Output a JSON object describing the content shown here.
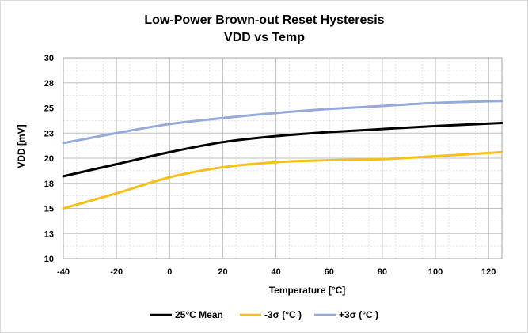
{
  "chart_data": {
    "type": "line",
    "title": "Low-Power Brown-out Reset Hysteresis",
    "subtitle": "VDD vs Temp",
    "xlabel": "Temperature [°C]",
    "ylabel": "VDD [mV]",
    "xlim": [
      -40,
      125
    ],
    "ylim": [
      10,
      30
    ],
    "x_ticks": [
      -40,
      -20,
      0,
      20,
      40,
      60,
      80,
      100,
      120
    ],
    "y_ticks": [
      10,
      13,
      15,
      18,
      20,
      23,
      25,
      28,
      30
    ],
    "y_tick_values": [
      10,
      12.5,
      15,
      17.5,
      20,
      22.5,
      25,
      27.5,
      30
    ],
    "grid": true,
    "legend_position": "bottom",
    "x": [
      -40,
      -20,
      0,
      20,
      40,
      60,
      80,
      100,
      125
    ],
    "series": [
      {
        "name": "25°C Mean",
        "color": "#000000",
        "values": [
          18.2,
          19.4,
          20.6,
          21.6,
          22.2,
          22.6,
          22.9,
          23.2,
          23.5
        ]
      },
      {
        "name": "-3σ (°C )",
        "color": "#f5c01a",
        "values": [
          15.0,
          16.5,
          18.1,
          19.1,
          19.6,
          19.8,
          19.9,
          20.2,
          20.6
        ]
      },
      {
        "name": "+3σ (°C )",
        "color": "#95aadb",
        "values": [
          21.5,
          22.5,
          23.4,
          24.0,
          24.5,
          24.9,
          25.2,
          25.5,
          25.7
        ]
      }
    ]
  }
}
